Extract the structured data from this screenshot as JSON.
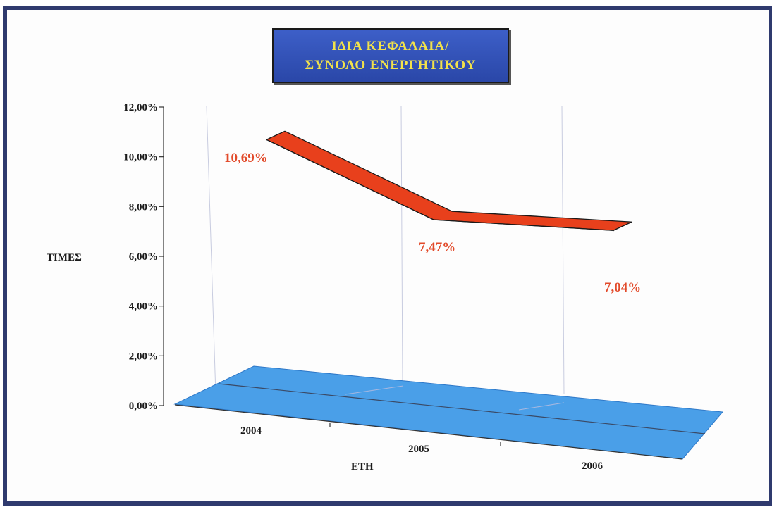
{
  "title": {
    "line1": "ΙΔΙΑ ΚΕΦΑΛΑΙΑ/",
    "line2": "ΣΥΝΟΛΟ ΕΝΕΡΓΗΤΙΚΟΥ"
  },
  "chart_data": {
    "type": "line",
    "title": "ΙΔΙΑ ΚΕΦΑΛΑΙΑ/ ΣΥΝΟΛΟ ΕΝΕΡΓΗΤΙΚΟΥ",
    "xlabel": "ΕΤΗ",
    "ylabel": "ΤΙΜΕΣ",
    "categories": [
      "2004",
      "2005",
      "2006"
    ],
    "series": [
      {
        "values": [
          10.69,
          7.47,
          7.04
        ],
        "data_labels": [
          "10,69%",
          "7,47%",
          "7,04%"
        ]
      }
    ],
    "ylim": [
      0,
      12
    ],
    "y_ticks": [
      "0,00%",
      "2,00%",
      "4,00%",
      "6,00%",
      "8,00%",
      "10,00%",
      "12,00%"
    ],
    "grid": true,
    "style": "3d-ribbon",
    "colors": {
      "series": "#e8401c",
      "floor": "#4a9fe8",
      "labels": "#e24a2a"
    }
  }
}
